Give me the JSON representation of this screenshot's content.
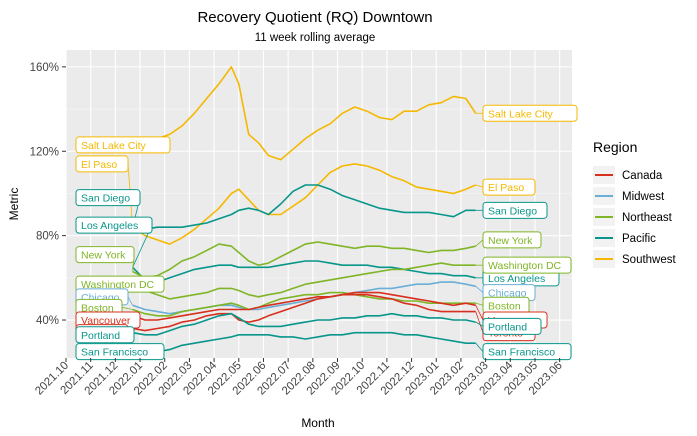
{
  "chart_data": {
    "type": "line",
    "title": "Recovery Quotient (RQ) Downtown",
    "subtitle": "11  week rolling average",
    "xlabel": "Month",
    "ylabel": "Metric",
    "x_tick_labels": [
      "2021.10",
      "2021.11",
      "2021.12",
      "2022.01",
      "2022.02",
      "2022.03",
      "2022.04",
      "2022.05",
      "2022.06",
      "2022.07",
      "2022.08",
      "2022.09",
      "2022.10",
      "2022.11",
      "2022.12",
      "2023.01",
      "2023.02",
      "2023.03",
      "2023.04",
      "2023.05",
      "2023.06"
    ],
    "y_ticks": [
      40,
      80,
      120,
      160
    ],
    "y_tick_labels": [
      "40%",
      "80%",
      "120%",
      "160%"
    ],
    "ylim": [
      22,
      168
    ],
    "xlim": [
      0,
      20.5
    ],
    "grid": true,
    "legend": {
      "title": "Region",
      "position": "right",
      "items": [
        {
          "name": "Canada",
          "color": "#d7301f"
        },
        {
          "name": "Midwest",
          "color": "#6baed6"
        },
        {
          "name": "Northeast",
          "color": "#7fb526"
        },
        {
          "name": "Pacific",
          "color": "#08968a"
        },
        {
          "name": "Southwest",
          "color": "#f5b800"
        }
      ]
    },
    "series": [
      {
        "name": "Salt Lake City",
        "region": "Southwest",
        "start_label_side": "left",
        "start_label_y": 123,
        "end_label_y": 138,
        "x": [
          2.7,
          3.2,
          3.7,
          4.2,
          4.7,
          5.2,
          5.7,
          6.2,
          6.7,
          7.0,
          7.4,
          7.8,
          8.2,
          8.7,
          9.2,
          9.7,
          10.2,
          10.7,
          11.2,
          11.7,
          12.2,
          12.7,
          13.2,
          13.7,
          14.2,
          14.7,
          15.2,
          15.7,
          16.2,
          16.6
        ],
        "y": [
          122,
          124,
          126,
          128,
          132,
          138,
          145,
          152,
          160,
          152,
          128,
          124,
          118,
          116,
          121,
          126,
          130,
          133,
          138,
          141,
          139,
          136,
          135,
          139,
          139,
          142,
          143,
          146,
          145,
          138
        ]
      },
      {
        "name": "El Paso",
        "region": "Southwest",
        "start_label_side": "left",
        "start_label_y": 114,
        "end_label_y": 103,
        "x": [
          2.7,
          3.2,
          3.7,
          4.2,
          4.7,
          5.2,
          5.7,
          6.2,
          6.7,
          7.0,
          7.4,
          7.8,
          8.2,
          8.7,
          9.2,
          9.7,
          10.2,
          10.7,
          11.2,
          11.7,
          12.2,
          12.7,
          13.2,
          13.7,
          14.2,
          14.7,
          15.2,
          15.7,
          16.2,
          16.6
        ],
        "y": [
          84,
          80,
          78,
          76,
          79,
          83,
          88,
          93,
          100,
          102,
          97,
          92,
          90,
          90,
          94,
          98,
          104,
          110,
          113,
          114,
          113,
          111,
          108,
          106,
          103,
          102,
          101,
          100,
          102,
          104
        ]
      },
      {
        "name": "San Diego",
        "region": "Pacific",
        "start_label_side": "left",
        "start_label_y": 98,
        "end_label_y": 92,
        "x": [
          2.7,
          3.2,
          3.7,
          4.2,
          4.7,
          5.2,
          5.7,
          6.2,
          6.7,
          7.0,
          7.4,
          7.8,
          8.2,
          8.7,
          9.2,
          9.7,
          10.2,
          10.7,
          11.2,
          11.7,
          12.2,
          12.7,
          13.2,
          13.7,
          14.2,
          14.7,
          15.2,
          15.7,
          16.2,
          16.6
        ],
        "y": [
          84,
          83,
          84,
          84,
          84,
          85,
          86,
          88,
          90,
          92,
          93,
          92,
          90,
          95,
          101,
          104,
          104,
          102,
          99,
          97,
          95,
          93,
          92,
          91,
          91,
          91,
          90,
          89,
          92,
          92
        ]
      },
      {
        "name": "Los Angeles",
        "region": "Pacific",
        "start_label_side": "left",
        "start_label_y": 85,
        "end_label_y": 60,
        "x": [
          2.7,
          3.2,
          3.7,
          4.2,
          4.7,
          5.2,
          5.7,
          6.2,
          6.7,
          7.0,
          7.4,
          7.8,
          8.2,
          8.7,
          9.2,
          9.7,
          10.2,
          10.7,
          11.2,
          11.7,
          12.2,
          12.7,
          13.2,
          13.7,
          14.2,
          14.7,
          15.2,
          15.7,
          16.2,
          16.6
        ],
        "y": [
          65,
          59,
          58,
          60,
          62,
          64,
          65,
          66,
          66,
          65,
          65,
          65,
          65,
          66,
          67,
          68,
          68,
          67,
          66,
          66,
          66,
          65,
          65,
          64,
          63,
          62,
          62,
          61,
          61,
          60
        ]
      },
      {
        "name": "New York",
        "region": "Northeast",
        "start_label_side": "left",
        "start_label_y": 71,
        "end_label_y": 78,
        "x": [
          2.7,
          3.2,
          3.7,
          4.2,
          4.7,
          5.2,
          5.7,
          6.2,
          6.7,
          7.0,
          7.4,
          7.8,
          8.2,
          8.7,
          9.2,
          9.7,
          10.2,
          10.7,
          11.2,
          11.7,
          12.2,
          12.7,
          13.2,
          13.7,
          14.2,
          14.7,
          15.2,
          15.7,
          16.2,
          16.6
        ],
        "y": [
          63,
          60,
          61,
          64,
          68,
          70,
          73,
          76,
          75,
          72,
          68,
          66,
          67,
          70,
          73,
          76,
          77,
          76,
          75,
          74,
          75,
          75,
          74,
          74,
          73,
          72,
          73,
          73,
          74,
          75
        ]
      },
      {
        "name": "Washington DC",
        "region": "Northeast",
        "start_label_side": "left",
        "start_label_y": 57,
        "end_label_y": 66,
        "x": [
          2.7,
          3.2,
          3.7,
          4.2,
          4.7,
          5.2,
          5.7,
          6.2,
          6.7,
          7.0,
          7.4,
          7.8,
          8.2,
          8.7,
          9.2,
          9.7,
          10.2,
          10.7,
          11.2,
          11.7,
          12.2,
          12.7,
          13.2,
          13.7,
          14.2,
          14.7,
          15.2,
          15.7,
          16.2,
          16.6
        ],
        "y": [
          56,
          54,
          52,
          50,
          51,
          52,
          53,
          55,
          55,
          54,
          52,
          51,
          52,
          53,
          55,
          57,
          58,
          59,
          60,
          61,
          62,
          63,
          64,
          64,
          65,
          66,
          67,
          66,
          66,
          66
        ]
      },
      {
        "name": "Chicago",
        "region": "Midwest",
        "start_label_side": "left",
        "start_label_y": 51,
        "end_label_y": 53,
        "x": [
          2.7,
          3.2,
          3.7,
          4.2,
          4.7,
          5.2,
          5.7,
          6.2,
          6.7,
          7.0,
          7.4,
          7.8,
          8.2,
          8.7,
          9.2,
          9.7,
          10.2,
          10.7,
          11.2,
          11.7,
          12.2,
          12.7,
          13.2,
          13.7,
          14.2,
          14.7,
          15.2,
          15.7,
          16.2,
          16.6
        ],
        "y": [
          47,
          45,
          44,
          43,
          44,
          45,
          46,
          47,
          47,
          46,
          45,
          45,
          46,
          47,
          48,
          49,
          50,
          51,
          52,
          53,
          54,
          55,
          55,
          56,
          57,
          57,
          58,
          58,
          57,
          56
        ]
      },
      {
        "name": "Boston",
        "region": "Northeast",
        "start_label_side": "left",
        "start_label_y": 46,
        "end_label_y": 47,
        "x": [
          2.7,
          3.2,
          3.7,
          4.2,
          4.7,
          5.2,
          5.7,
          6.2,
          6.7,
          7.0,
          7.4,
          7.8,
          8.2,
          8.7,
          9.2,
          9.7,
          10.2,
          10.7,
          11.2,
          11.7,
          12.2,
          12.7,
          13.2,
          13.7,
          14.2,
          14.7,
          15.2,
          15.7,
          16.2,
          16.6
        ],
        "y": [
          45,
          43,
          42,
          42,
          44,
          45,
          46,
          47,
          48,
          47,
          45,
          46,
          48,
          50,
          51,
          52,
          52,
          53,
          53,
          52,
          51,
          50,
          50,
          49,
          49,
          48,
          48,
          48,
          48,
          48
        ]
      },
      {
        "name": "Vancouver",
        "region": "Canada",
        "start_label_side": "left",
        "start_label_y": 40,
        "end_label_y": 40,
        "x": [
          2.7,
          3.2,
          3.7,
          4.2,
          4.7,
          5.2,
          5.7,
          6.2,
          6.7,
          7.0,
          7.4,
          7.8,
          8.2,
          8.7,
          9.2,
          9.7,
          10.2,
          10.7,
          11.2,
          11.7,
          12.2,
          12.7,
          13.2,
          13.7,
          14.2,
          14.7,
          15.2,
          15.7,
          16.2,
          16.6
        ],
        "y": [
          42,
          40,
          40,
          41,
          42,
          43,
          44,
          45,
          45,
          45,
          45,
          46,
          47,
          48,
          49,
          50,
          51,
          51,
          52,
          53,
          53,
          53,
          52,
          51,
          50,
          49,
          48,
          47,
          48,
          47
        ]
      },
      {
        "name": "Toronto",
        "region": "Canada",
        "start_label_side": "left",
        "start_label_y": 34,
        "end_label_y": 34,
        "x": [
          2.7,
          3.2,
          3.7,
          4.2,
          4.7,
          5.2,
          5.7,
          6.2,
          6.7,
          7.0,
          7.4,
          7.8,
          8.2,
          8.7,
          9.2,
          9.7,
          10.2,
          10.7,
          11.2,
          11.7,
          12.2,
          12.7,
          13.2,
          13.7,
          14.2,
          14.7,
          15.2,
          15.7,
          16.2,
          16.6
        ],
        "y": [
          36,
          35,
          36,
          37,
          39,
          40,
          42,
          43,
          43,
          40,
          39,
          40,
          42,
          44,
          46,
          48,
          50,
          51,
          52,
          52,
          52,
          51,
          50,
          48,
          47,
          45,
          44,
          44,
          44,
          44
        ]
      },
      {
        "name": "Portland",
        "region": "Pacific",
        "start_label_side": "left",
        "start_label_y": 33,
        "end_label_y": 37,
        "x": [
          2.7,
          3.2,
          3.7,
          4.2,
          4.7,
          5.2,
          5.7,
          6.2,
          6.7,
          7.0,
          7.4,
          7.8,
          8.2,
          8.7,
          9.2,
          9.7,
          10.2,
          10.7,
          11.2,
          11.7,
          12.2,
          12.7,
          13.2,
          13.7,
          14.2,
          14.7,
          15.2,
          15.7,
          16.2,
          16.6
        ],
        "y": [
          34,
          33,
          33,
          35,
          37,
          38,
          40,
          42,
          43,
          41,
          38,
          37,
          37,
          37,
          38,
          39,
          40,
          40,
          41,
          41,
          42,
          42,
          43,
          42,
          42,
          41,
          41,
          40,
          40,
          39
        ]
      },
      {
        "name": "San Francisco",
        "region": "Pacific",
        "start_label_side": "left",
        "start_label_y": 25,
        "end_label_y": 25,
        "x": [
          2.7,
          3.2,
          3.7,
          4.2,
          4.7,
          5.2,
          5.7,
          6.2,
          6.7,
          7.0,
          7.4,
          7.8,
          8.2,
          8.7,
          9.2,
          9.7,
          10.2,
          10.7,
          11.2,
          11.7,
          12.2,
          12.7,
          13.2,
          13.7,
          14.2,
          14.7,
          15.2,
          15.7,
          16.2,
          16.6
        ],
        "y": [
          28,
          26,
          25,
          26,
          28,
          29,
          30,
          31,
          32,
          33,
          33,
          33,
          33,
          32,
          32,
          31,
          32,
          33,
          33,
          34,
          34,
          34,
          34,
          33,
          33,
          32,
          31,
          30,
          29,
          29
        ]
      }
    ]
  }
}
